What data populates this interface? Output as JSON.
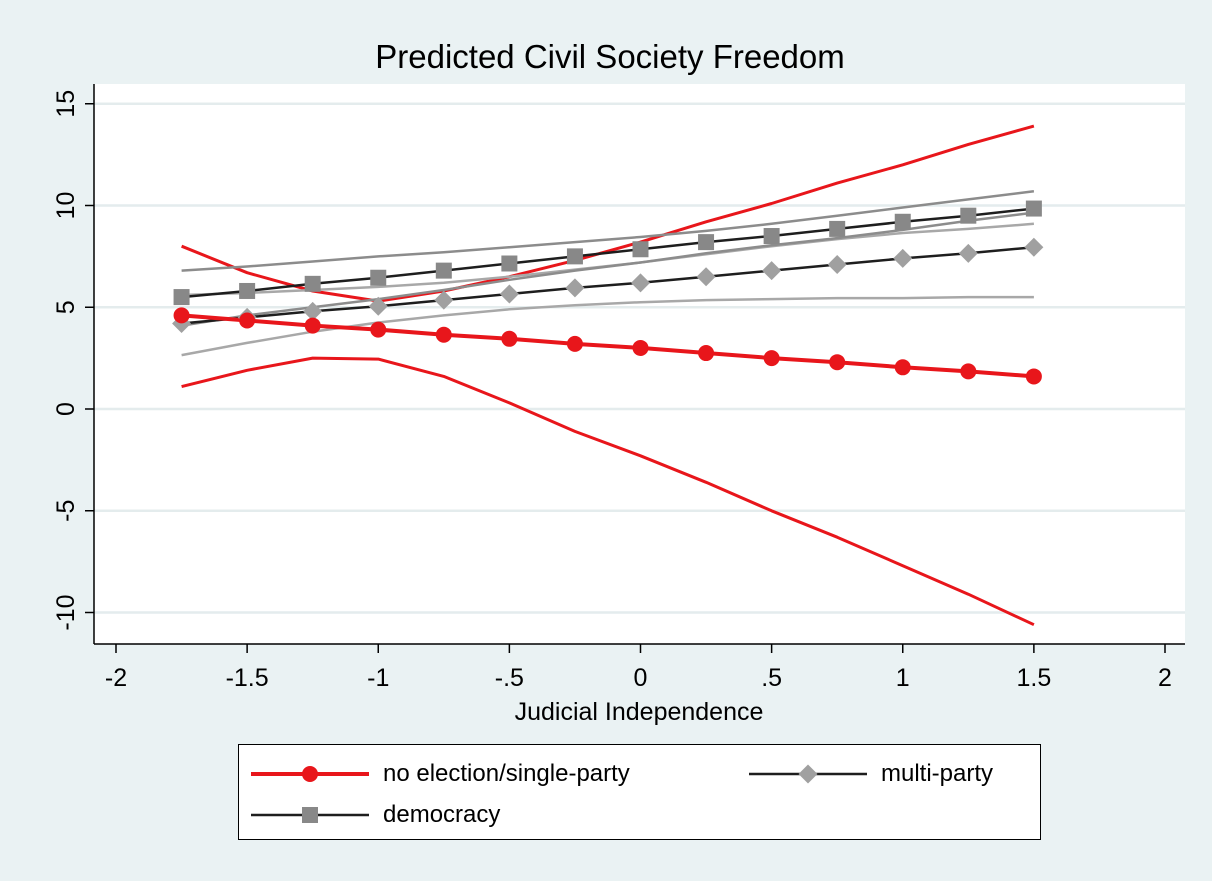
{
  "chart_data": {
    "type": "line",
    "title": "Predicted Civil Society Freedom",
    "xlabel": "Judicial Independence",
    "ylabel": "",
    "xlim": [
      -2,
      2
    ],
    "ylim": [
      -11.5,
      15.5
    ],
    "x_ticks": [
      -2,
      -1.5,
      -1,
      -0.5,
      0,
      0.5,
      1,
      1.5,
      2
    ],
    "x_tick_labels": [
      "-2",
      "-1.5",
      "-1",
      "-.5",
      "0",
      ".5",
      "1",
      "1.5",
      "2"
    ],
    "y_ticks": [
      -10,
      -5,
      0,
      5,
      10,
      15
    ],
    "y_tick_labels": [
      "-10",
      "-5",
      "0",
      "5",
      "10",
      "15"
    ],
    "grid": true,
    "legend_position": "bottom",
    "x": [
      -1.75,
      -1.5,
      -1.25,
      -1,
      -0.75,
      -0.5,
      -0.25,
      0,
      0.25,
      0.5,
      0.75,
      1,
      1.25,
      1.5
    ],
    "series": [
      {
        "name": "no election/single-party",
        "color": "#e8161b",
        "marker": "circle",
        "values": [
          4.6,
          4.35,
          4.1,
          3.9,
          3.65,
          3.45,
          3.2,
          3.0,
          2.75,
          2.5,
          2.3,
          2.05,
          1.85,
          1.6
        ],
        "ci_color": "#e8161b",
        "ci_upper": [
          8.0,
          6.7,
          5.8,
          5.3,
          5.8,
          6.5,
          7.3,
          8.2,
          9.2,
          10.1,
          11.1,
          12.0,
          13.0,
          13.9
        ],
        "ci_lower": [
          1.1,
          1.9,
          2.5,
          2.45,
          1.6,
          0.3,
          -1.1,
          -2.3,
          -3.6,
          -5.0,
          -6.3,
          -7.7,
          -9.1,
          -10.6
        ]
      },
      {
        "name": "multi-party",
        "color": "#a0a0a0",
        "line_color": "#1e1e1e",
        "marker": "diamond",
        "values": [
          4.2,
          4.5,
          4.8,
          5.05,
          5.35,
          5.65,
          5.95,
          6.2,
          6.5,
          6.8,
          7.1,
          7.4,
          7.65,
          7.95
        ],
        "ci_color": "#a8a8a8",
        "ci_upper": [
          5.6,
          5.7,
          5.85,
          6.0,
          6.2,
          6.5,
          6.85,
          7.2,
          7.6,
          8.0,
          8.35,
          8.65,
          8.85,
          9.1
        ],
        "ci_lower": [
          2.65,
          3.25,
          3.8,
          4.25,
          4.6,
          4.9,
          5.1,
          5.25,
          5.35,
          5.4,
          5.45,
          5.45,
          5.5,
          5.5
        ]
      },
      {
        "name": "democracy",
        "color": "#888888",
        "line_color": "#1e1e1e",
        "marker": "square",
        "values": [
          5.5,
          5.8,
          6.15,
          6.45,
          6.8,
          7.15,
          7.5,
          7.85,
          8.2,
          8.5,
          8.85,
          9.2,
          9.5,
          9.85
        ],
        "ci_color": "#8c8c8c",
        "ci_upper": [
          6.8,
          7.0,
          7.25,
          7.5,
          7.7,
          7.95,
          8.2,
          8.45,
          8.75,
          9.1,
          9.5,
          9.9,
          10.3,
          10.7
        ],
        "ci_lower": [
          4.1,
          4.6,
          5.0,
          5.4,
          5.85,
          6.35,
          6.8,
          7.2,
          7.65,
          8.05,
          8.4,
          8.8,
          9.25,
          9.65
        ]
      }
    ]
  }
}
